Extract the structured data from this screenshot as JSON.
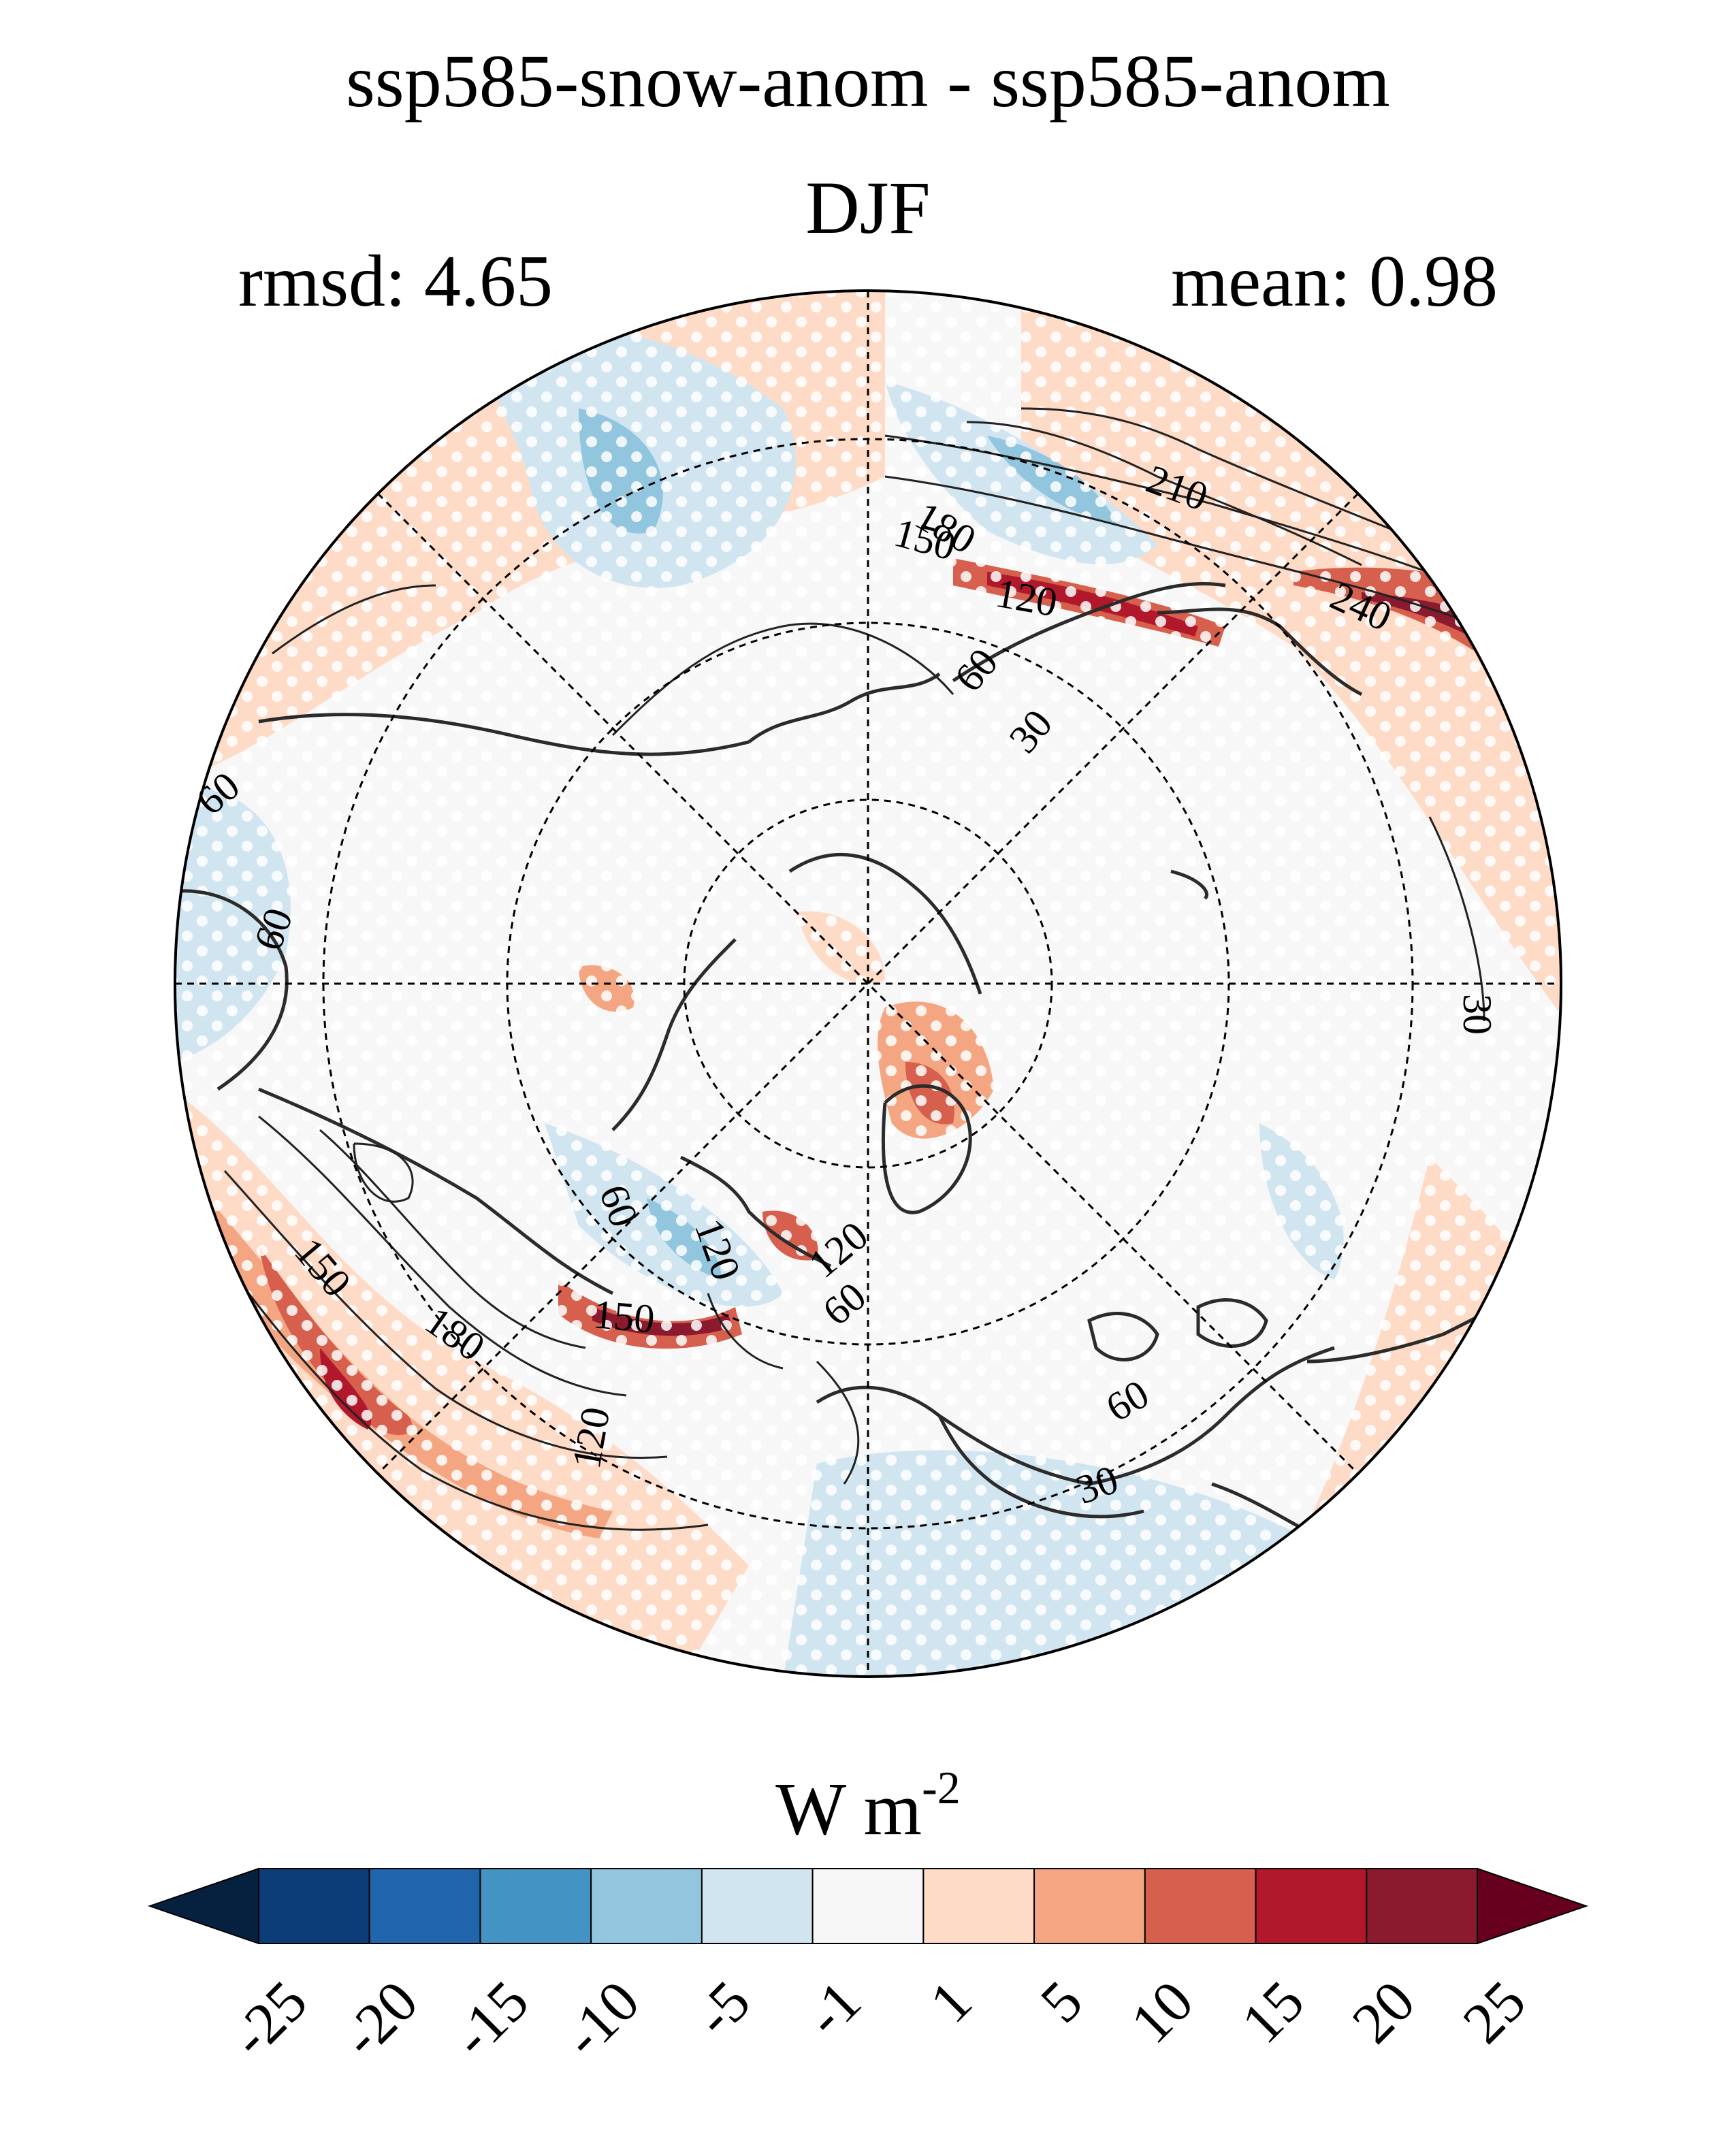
{
  "title": {
    "line1": "ssp585-snow-anom - ssp585-anom",
    "line2": "DJF"
  },
  "stats": {
    "rmsd_text": "rmsd: 4.65",
    "mean_text": "mean: 0.98"
  },
  "map": {
    "projection": "north polar stereographic",
    "contour_labels": [
      "210",
      "180",
      "150",
      "120",
      "240",
      "60",
      "30",
      "60",
      "60",
      "30",
      "150",
      "180",
      "150",
      "120",
      "60",
      "120",
      "120",
      "60",
      "60",
      "30"
    ],
    "stippling": "white dots"
  },
  "colorbar": {
    "units_main": "W m",
    "units_exp": "-2",
    "tick_labels": [
      "-25",
      "-20",
      "-15",
      "-10",
      "-5",
      "-1",
      "1",
      "5",
      "10",
      "15",
      "20",
      "25"
    ],
    "colors": [
      "#06213f",
      "#0d3d78",
      "#2166ac",
      "#4393c3",
      "#92c5de",
      "#d1e5f0",
      "#f7f7f7",
      "#fddbc7",
      "#f4a582",
      "#d6604d",
      "#b2182b",
      "#8b1a2e",
      "#67001f"
    ]
  }
}
